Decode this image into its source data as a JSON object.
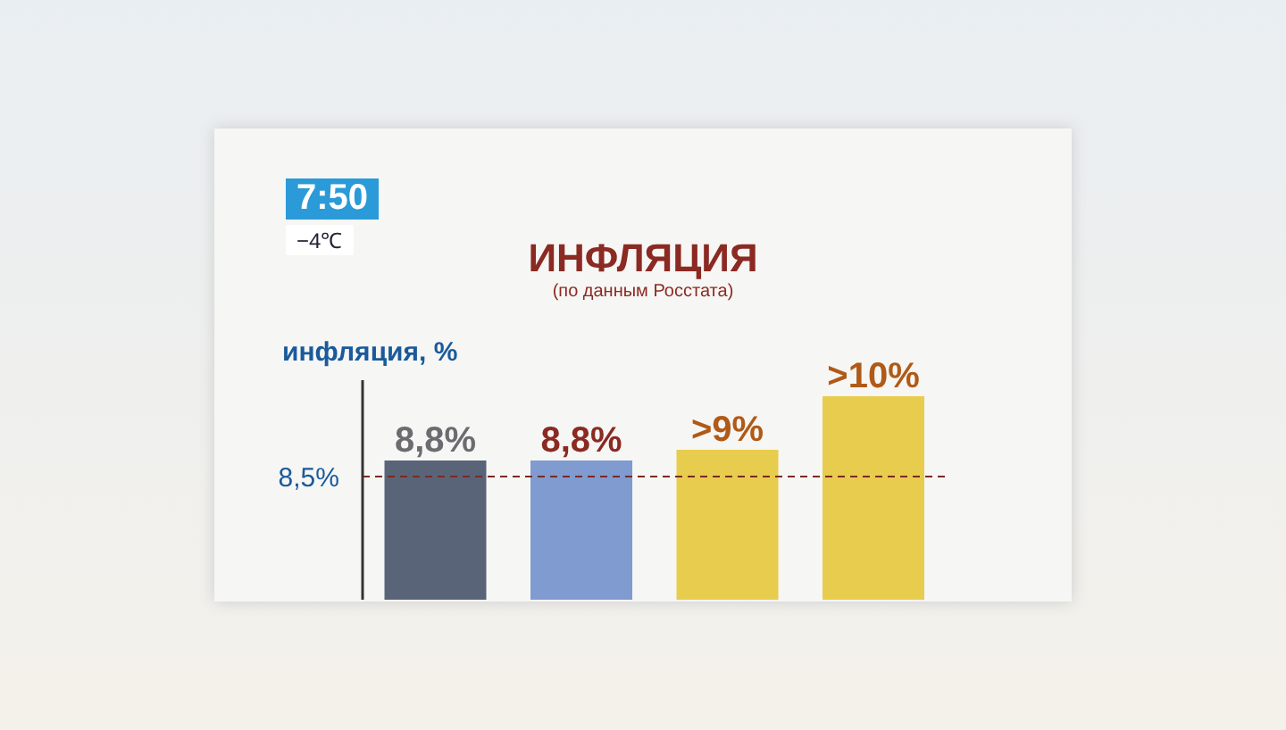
{
  "chart_data": {
    "type": "bar",
    "title": "ИНФЛЯЦИЯ",
    "subtitle": "(по данным Росстата)",
    "ylabel": "инфляция, %",
    "categories": [
      null,
      null,
      null,
      null
    ],
    "colors": [
      "#5a6478",
      "#7f9bd0",
      "#e8cc4e",
      "#e8cc4e"
    ],
    "values": [
      8.8,
      8.8,
      9,
      10
    ],
    "value_labels": [
      "8,8%",
      "8,8%",
      ">9%",
      ">10%"
    ],
    "ylim": [
      6.2,
      10.3
    ],
    "ref_lines": [
      {
        "axis": "y",
        "value": 8.5,
        "label": "8,5%",
        "color": "#7a2a22",
        "line_style": "dashed"
      }
    ],
    "annotations": [
      "7:50",
      "−4℃"
    ]
  }
}
